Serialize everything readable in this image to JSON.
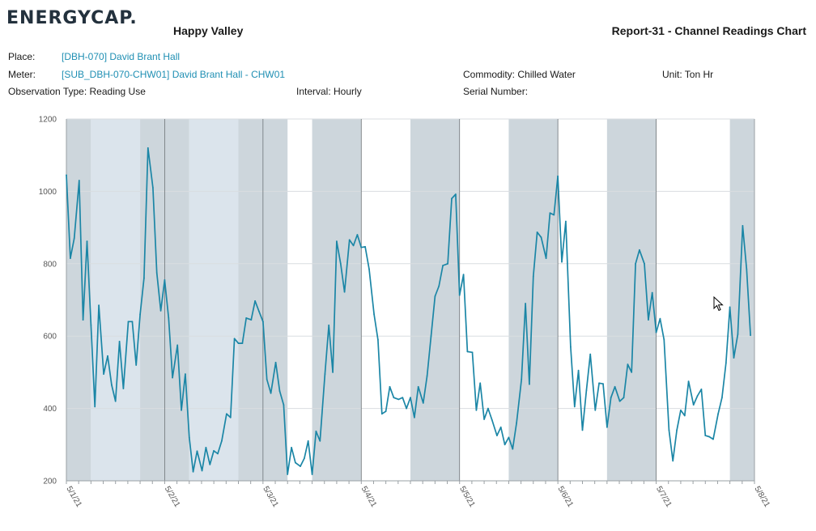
{
  "header": {
    "logo": "ENERGYCAP.",
    "site": "Happy Valley",
    "report_title": "Report-31 - Channel Readings Chart"
  },
  "info": {
    "place_label": "Place:",
    "place_value": "[DBH-070] David Brant Hall",
    "meter_label": "Meter:",
    "meter_value": "[SUB_DBH-070-CHW01] David Brant Hall - CHW01",
    "commodity": "Commodity: Chilled Water",
    "unit": "Unit: Ton Hr",
    "observation_type": "Observation Type: Reading Use",
    "interval": "Interval: Hourly",
    "serial_number": "Serial Number:"
  },
  "chart_data": {
    "type": "line",
    "title": "",
    "xlabel": "",
    "ylabel": "",
    "ylim": [
      200,
      1200
    ],
    "yticks": [
      200,
      400,
      600,
      800,
      1000,
      1200
    ],
    "x_tick_labels": [
      "5/1/21",
      "5/2/21",
      "5/3/21",
      "5/4/21",
      "5/5/21",
      "5/6/21",
      "5/7/21",
      "5/8/21"
    ],
    "grid": true,
    "line_color": "#1b86a6",
    "shading": [
      {
        "from": 0,
        "to": 0.25,
        "color": "#cdd6dc"
      },
      {
        "from": 0.25,
        "to": 0.75,
        "color": "#dbe4ec"
      },
      {
        "from": 0.75,
        "to": 1.25,
        "color": "#cdd6dc"
      },
      {
        "from": 1.25,
        "to": 1.75,
        "color": "#dbe4ec"
      },
      {
        "from": 1.75,
        "to": 2.25,
        "color": "#cdd6dc"
      },
      {
        "from": 2.5,
        "to": 3.0,
        "color": "#cdd6dc"
      },
      {
        "from": 3.5,
        "to": 4.0,
        "color": "#cdd6dc"
      },
      {
        "from": 4.5,
        "to": 5.0,
        "color": "#cdd6dc"
      },
      {
        "from": 5.5,
        "to": 6.0,
        "color": "#cdd6dc"
      },
      {
        "from": 6.75,
        "to": 7.0,
        "color": "#cdd6dc"
      }
    ],
    "series": [
      {
        "values": [
          [
            0.0,
            1045
          ],
          [
            0.04,
            815
          ],
          [
            0.08,
            870
          ],
          [
            0.13,
            1030
          ],
          [
            0.17,
            645
          ],
          [
            0.21,
            862
          ],
          [
            0.25,
            630
          ],
          [
            0.29,
            405
          ],
          [
            0.33,
            685
          ],
          [
            0.38,
            495
          ],
          [
            0.42,
            545
          ],
          [
            0.46,
            465
          ],
          [
            0.5,
            420
          ],
          [
            0.54,
            585
          ],
          [
            0.58,
            455
          ],
          [
            0.63,
            640
          ],
          [
            0.67,
            640
          ],
          [
            0.71,
            520
          ],
          [
            0.75,
            660
          ],
          [
            0.79,
            760
          ],
          [
            0.83,
            1120
          ],
          [
            0.88,
            1010
          ],
          [
            0.92,
            775
          ],
          [
            0.96,
            670
          ],
          [
            1.0,
            755
          ],
          [
            1.04,
            650
          ],
          [
            1.08,
            485
          ],
          [
            1.13,
            575
          ],
          [
            1.17,
            395
          ],
          [
            1.21,
            495
          ],
          [
            1.25,
            320
          ],
          [
            1.29,
            225
          ],
          [
            1.33,
            282
          ],
          [
            1.38,
            228
          ],
          [
            1.42,
            292
          ],
          [
            1.46,
            245
          ],
          [
            1.5,
            283
          ],
          [
            1.54,
            275
          ],
          [
            1.58,
            310
          ],
          [
            1.63,
            385
          ],
          [
            1.67,
            375
          ],
          [
            1.71,
            593
          ],
          [
            1.75,
            580
          ],
          [
            1.79,
            580
          ],
          [
            1.83,
            650
          ],
          [
            1.88,
            645
          ],
          [
            1.92,
            697
          ],
          [
            1.96,
            668
          ],
          [
            2.0,
            640
          ],
          [
            2.04,
            480
          ],
          [
            2.08,
            442
          ],
          [
            2.13,
            527
          ],
          [
            2.17,
            448
          ],
          [
            2.21,
            410
          ],
          [
            2.25,
            218
          ],
          [
            2.29,
            292
          ],
          [
            2.33,
            250
          ],
          [
            2.38,
            240
          ],
          [
            2.42,
            262
          ],
          [
            2.46,
            310
          ],
          [
            2.5,
            218
          ],
          [
            2.54,
            337
          ],
          [
            2.58,
            310
          ],
          [
            2.63,
            495
          ],
          [
            2.67,
            630
          ],
          [
            2.71,
            500
          ],
          [
            2.75,
            862
          ],
          [
            2.79,
            800
          ],
          [
            2.83,
            722
          ],
          [
            2.88,
            866
          ],
          [
            2.92,
            850
          ],
          [
            2.96,
            880
          ],
          [
            3.0,
            845
          ],
          [
            3.04,
            847
          ],
          [
            3.08,
            785
          ],
          [
            3.13,
            660
          ],
          [
            3.17,
            590
          ],
          [
            3.21,
            385
          ],
          [
            3.25,
            392
          ],
          [
            3.29,
            460
          ],
          [
            3.33,
            430
          ],
          [
            3.38,
            425
          ],
          [
            3.42,
            430
          ],
          [
            3.46,
            400
          ],
          [
            3.5,
            430
          ],
          [
            3.54,
            375
          ],
          [
            3.58,
            460
          ],
          [
            3.63,
            415
          ],
          [
            3.67,
            490
          ],
          [
            3.71,
            600
          ],
          [
            3.75,
            710
          ],
          [
            3.79,
            738
          ],
          [
            3.83,
            795
          ],
          [
            3.88,
            800
          ],
          [
            3.92,
            980
          ],
          [
            3.96,
            992
          ],
          [
            4.0,
            713
          ],
          [
            4.04,
            770
          ],
          [
            4.08,
            557
          ],
          [
            4.13,
            555
          ],
          [
            4.17,
            395
          ],
          [
            4.21,
            470
          ],
          [
            4.25,
            370
          ],
          [
            4.29,
            400
          ],
          [
            4.33,
            368
          ],
          [
            4.38,
            325
          ],
          [
            4.42,
            348
          ],
          [
            4.46,
            300
          ],
          [
            4.5,
            320
          ],
          [
            4.54,
            288
          ],
          [
            4.58,
            360
          ],
          [
            4.63,
            480
          ],
          [
            4.67,
            690
          ],
          [
            4.71,
            467
          ],
          [
            4.75,
            765
          ],
          [
            4.79,
            887
          ],
          [
            4.83,
            873
          ],
          [
            4.88,
            815
          ],
          [
            4.92,
            940
          ],
          [
            4.96,
            935
          ],
          [
            5.0,
            1042
          ],
          [
            5.04,
            805
          ],
          [
            5.08,
            917
          ],
          [
            5.13,
            570
          ],
          [
            5.17,
            405
          ],
          [
            5.21,
            505
          ],
          [
            5.25,
            340
          ],
          [
            5.29,
            450
          ],
          [
            5.33,
            550
          ],
          [
            5.38,
            395
          ],
          [
            5.42,
            470
          ],
          [
            5.46,
            468
          ],
          [
            5.5,
            348
          ],
          [
            5.54,
            430
          ],
          [
            5.58,
            460
          ],
          [
            5.63,
            420
          ],
          [
            5.67,
            430
          ],
          [
            5.71,
            522
          ],
          [
            5.75,
            500
          ],
          [
            5.79,
            800
          ],
          [
            5.83,
            838
          ],
          [
            5.88,
            800
          ],
          [
            5.92,
            645
          ],
          [
            5.96,
            720
          ],
          [
            6.0,
            610
          ],
          [
            6.04,
            648
          ],
          [
            6.08,
            590
          ],
          [
            6.13,
            340
          ],
          [
            6.17,
            255
          ],
          [
            6.21,
            340
          ],
          [
            6.25,
            395
          ],
          [
            6.29,
            380
          ],
          [
            6.33,
            475
          ],
          [
            6.38,
            410
          ],
          [
            6.42,
            435
          ],
          [
            6.46,
            453
          ],
          [
            6.5,
            325
          ],
          [
            6.54,
            322
          ],
          [
            6.58,
            315
          ],
          [
            6.63,
            385
          ],
          [
            6.67,
            430
          ],
          [
            6.71,
            525
          ],
          [
            6.75,
            680
          ],
          [
            6.79,
            540
          ],
          [
            6.83,
            605
          ],
          [
            6.88,
            905
          ],
          [
            6.92,
            785
          ],
          [
            6.96,
            602
          ]
        ]
      }
    ]
  }
}
